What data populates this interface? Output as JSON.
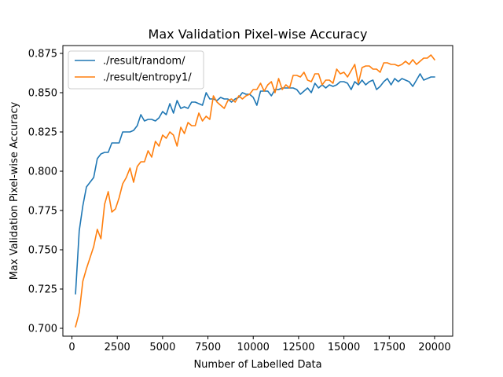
{
  "chart_data": {
    "type": "line",
    "title": "Max Validation Pixel-wise Accuracy",
    "xlabel": "Number of Labelled Data",
    "ylabel": "Max Validation Pixel-wise Accuracy",
    "xlim": [
      -500,
      21000
    ],
    "ylim": [
      0.695,
      0.88
    ],
    "xticks": [
      0,
      2500,
      5000,
      7500,
      10000,
      12500,
      15000,
      17500,
      20000
    ],
    "yticks": [
      0.7,
      0.725,
      0.75,
      0.775,
      0.8,
      0.825,
      0.85,
      0.875
    ],
    "grid": false,
    "legend_position": "top-left",
    "series": [
      {
        "name": "./result/random/",
        "color": "#1f77b4",
        "x": [
          200,
          400,
          600,
          800,
          1000,
          1200,
          1400,
          1600,
          1800,
          2000,
          2200,
          2400,
          2600,
          2800,
          3000,
          3200,
          3400,
          3600,
          3800,
          4000,
          4200,
          4400,
          4600,
          4800,
          5000,
          5200,
          5400,
          5600,
          5800,
          6000,
          6200,
          6400,
          6600,
          6800,
          7000,
          7200,
          7400,
          7600,
          7800,
          8000,
          8200,
          8400,
          8600,
          8800,
          9000,
          9200,
          9400,
          9600,
          9800,
          10000,
          10200,
          10400,
          10600,
          10800,
          11000,
          11200,
          11400,
          11600,
          11800,
          12000,
          12200,
          12400,
          12600,
          12800,
          13000,
          13200,
          13400,
          13600,
          13800,
          14000,
          14200,
          14400,
          14600,
          14800,
          15000,
          15200,
          15400,
          15600,
          15800,
          16000,
          16200,
          16400,
          16600,
          16800,
          17000,
          17200,
          17400,
          17600,
          17800,
          18000,
          18200,
          18400,
          18600,
          18800,
          19000,
          19200,
          19400,
          19600,
          19800,
          20000
        ],
        "values": [
          0.722,
          0.762,
          0.778,
          0.79,
          0.793,
          0.796,
          0.808,
          0.811,
          0.812,
          0.812,
          0.818,
          0.818,
          0.818,
          0.825,
          0.825,
          0.825,
          0.826,
          0.829,
          0.836,
          0.832,
          0.833,
          0.833,
          0.832,
          0.834,
          0.838,
          0.836,
          0.843,
          0.837,
          0.845,
          0.84,
          0.841,
          0.84,
          0.844,
          0.844,
          0.843,
          0.842,
          0.85,
          0.846,
          0.846,
          0.845,
          0.847,
          0.846,
          0.846,
          0.844,
          0.846,
          0.847,
          0.85,
          0.849,
          0.849,
          0.847,
          0.842,
          0.851,
          0.851,
          0.851,
          0.848,
          0.852,
          0.852,
          0.853,
          0.853,
          0.853,
          0.853,
          0.852,
          0.849,
          0.851,
          0.853,
          0.85,
          0.856,
          0.853,
          0.855,
          0.853,
          0.855,
          0.854,
          0.855,
          0.857,
          0.857,
          0.856,
          0.852,
          0.857,
          0.855,
          0.858,
          0.855,
          0.857,
          0.858,
          0.852,
          0.854,
          0.857,
          0.859,
          0.855,
          0.859,
          0.857,
          0.859,
          0.858,
          0.857,
          0.854,
          0.858,
          0.862,
          0.858,
          0.859,
          0.86,
          0.86
        ]
      },
      {
        "name": "./result/entropy1/",
        "color": "#ff7f0e",
        "x": [
          200,
          400,
          600,
          800,
          1000,
          1200,
          1400,
          1600,
          1800,
          2000,
          2200,
          2400,
          2600,
          2800,
          3000,
          3200,
          3400,
          3600,
          3800,
          4000,
          4200,
          4400,
          4600,
          4800,
          5000,
          5200,
          5400,
          5600,
          5800,
          6000,
          6200,
          6400,
          6600,
          6800,
          7000,
          7200,
          7400,
          7600,
          7800,
          8000,
          8200,
          8400,
          8600,
          8800,
          9000,
          9200,
          9400,
          9600,
          9800,
          10000,
          10200,
          10400,
          10600,
          10800,
          11000,
          11200,
          11400,
          11600,
          11800,
          12000,
          12200,
          12400,
          12600,
          12800,
          13000,
          13200,
          13400,
          13600,
          13800,
          14000,
          14200,
          14400,
          14600,
          14800,
          15000,
          15200,
          15400,
          15600,
          15800,
          16000,
          16200,
          16400,
          16600,
          16800,
          17000,
          17200,
          17400,
          17600,
          17800,
          18000,
          18200,
          18400,
          18600,
          18800,
          19000,
          19200,
          19400,
          19600,
          19800,
          20000
        ],
        "values": [
          0.701,
          0.71,
          0.73,
          0.738,
          0.745,
          0.752,
          0.763,
          0.757,
          0.779,
          0.787,
          0.774,
          0.776,
          0.783,
          0.792,
          0.796,
          0.802,
          0.793,
          0.803,
          0.806,
          0.806,
          0.813,
          0.809,
          0.819,
          0.816,
          0.823,
          0.821,
          0.825,
          0.823,
          0.816,
          0.828,
          0.824,
          0.831,
          0.829,
          0.829,
          0.837,
          0.832,
          0.835,
          0.833,
          0.848,
          0.844,
          0.842,
          0.84,
          0.845,
          0.846,
          0.844,
          0.848,
          0.846,
          0.848,
          0.849,
          0.852,
          0.852,
          0.856,
          0.851,
          0.855,
          0.857,
          0.85,
          0.859,
          0.852,
          0.855,
          0.853,
          0.861,
          0.861,
          0.86,
          0.863,
          0.858,
          0.857,
          0.862,
          0.862,
          0.855,
          0.858,
          0.858,
          0.856,
          0.865,
          0.862,
          0.863,
          0.86,
          0.864,
          0.868,
          0.856,
          0.866,
          0.867,
          0.867,
          0.865,
          0.865,
          0.863,
          0.869,
          0.869,
          0.868,
          0.868,
          0.867,
          0.868,
          0.87,
          0.868,
          0.871,
          0.868,
          0.87,
          0.872,
          0.872,
          0.874,
          0.871
        ]
      }
    ]
  }
}
